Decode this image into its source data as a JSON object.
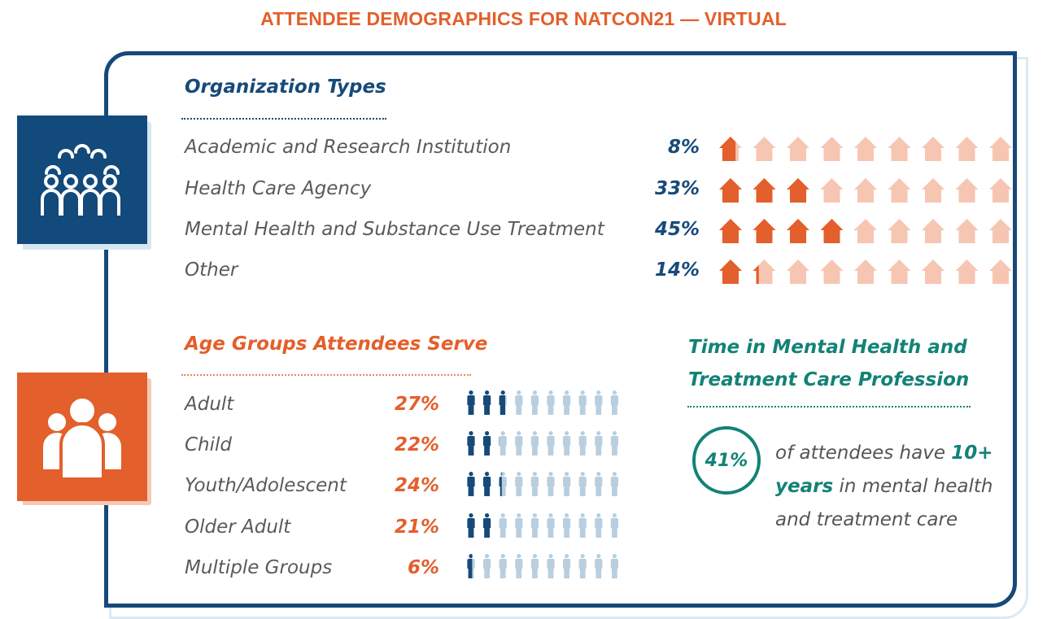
{
  "title": "ATTENDEE DEMOGRAPHICS FOR NATCON21 — VIRTUAL",
  "icons": {
    "org_icon": "group-of-people-icon",
    "age_icon": "family-group-icon"
  },
  "colors": {
    "navy": "#174a79",
    "orange": "#e35f2b",
    "light_orange": "#f6c6b3",
    "light_blue": "#b9cfdf",
    "teal": "#138276"
  },
  "chart_data": [
    {
      "type": "pictograph",
      "title": "Organization Types",
      "icon": "house-icon",
      "icons_total": 9,
      "percent_per_icon": 11.11,
      "categories": [
        "Academic and Research Institution",
        "Health Care Agency",
        "Mental Health and Substance Use Treatment",
        "Other"
      ],
      "values": [
        8,
        33,
        45,
        14
      ],
      "value_labels": [
        "8%",
        "33%",
        "45%",
        "14%"
      ]
    },
    {
      "type": "pictograph",
      "title": "Age Groups Attendees Serve",
      "icon": "person-icon",
      "icons_total": 10,
      "percent_per_icon": 10,
      "categories": [
        "Adult",
        "Child",
        "Youth/Adolescent",
        "Older Adult",
        "Multiple Groups"
      ],
      "values": [
        27,
        22,
        24,
        21,
        6
      ],
      "value_labels": [
        "27%",
        "22%",
        "24%",
        "21%",
        "6%"
      ]
    }
  ],
  "time_section": {
    "heading_line1": "Time in Mental Health and",
    "heading_line2": "Treatment Care Profession",
    "stat": "41%",
    "text_before": "of attendees have ",
    "highlight": "10+ years",
    "text_after": " in mental health and treatment care"
  }
}
